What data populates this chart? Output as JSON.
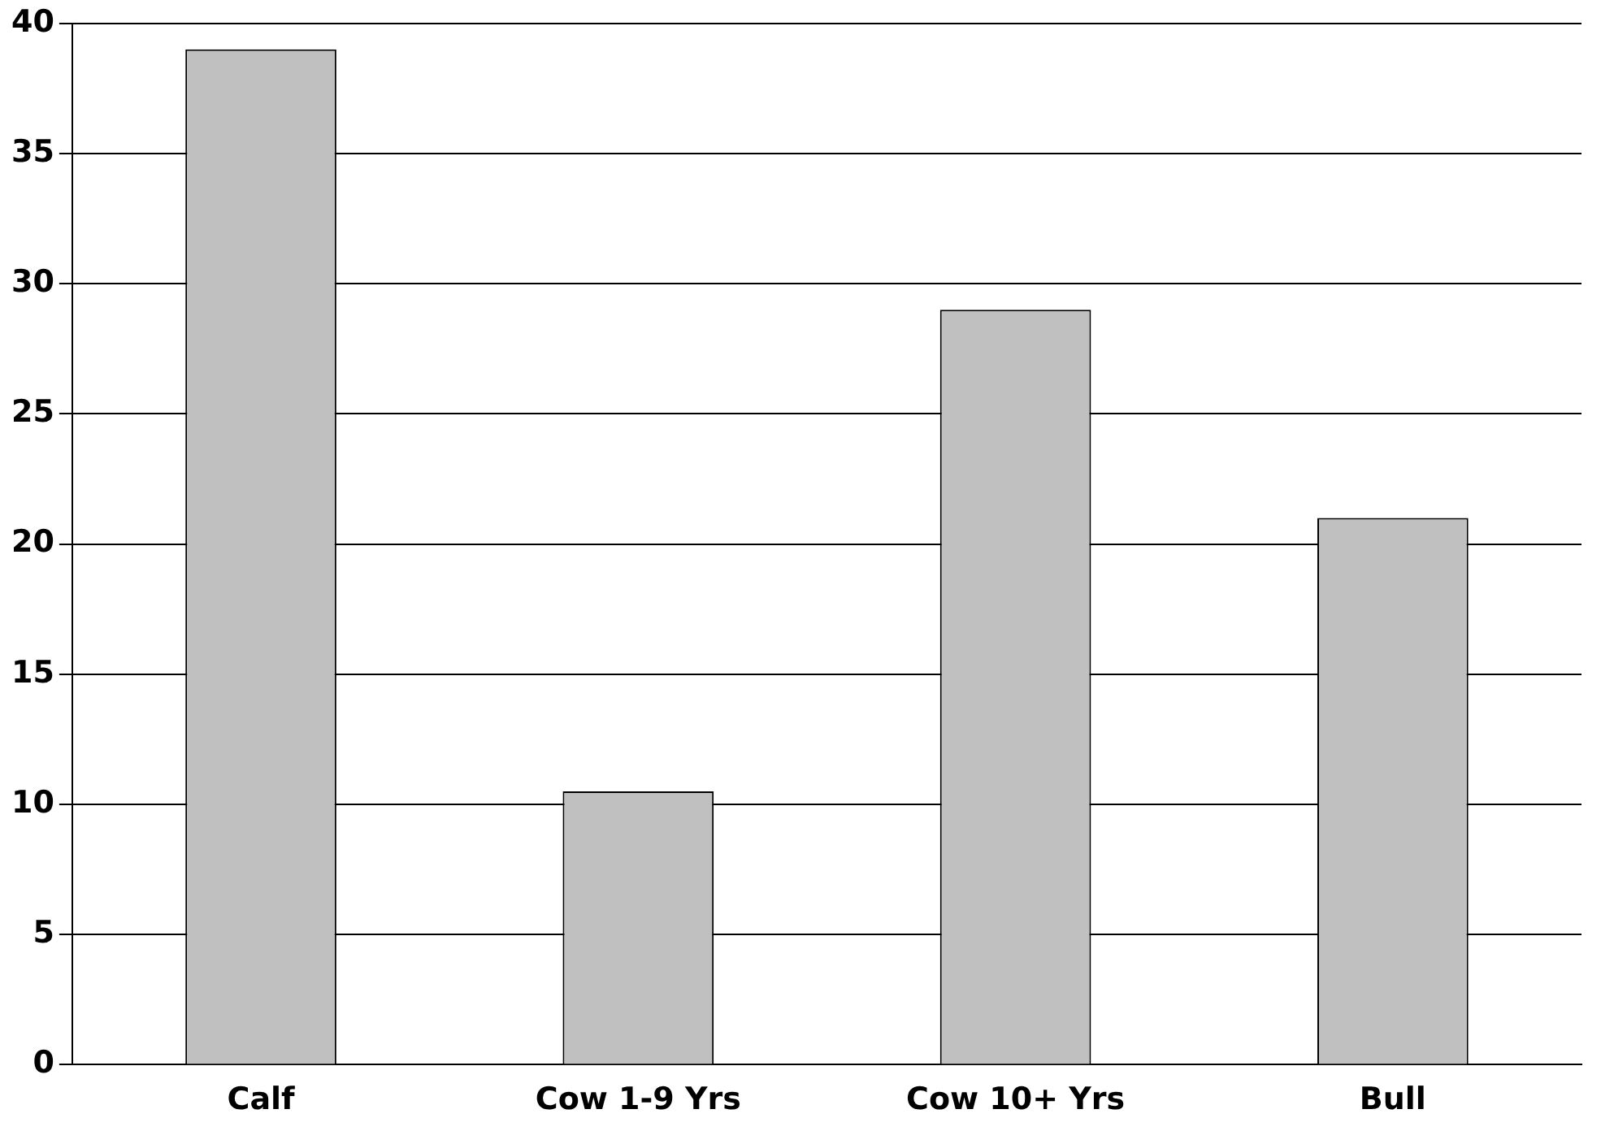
{
  "chart_data": {
    "type": "bar",
    "categories": [
      "Calf",
      "Cow 1-9 Yrs",
      "Cow 10+ Yrs",
      "Bull"
    ],
    "values": [
      39,
      10.5,
      29,
      21
    ],
    "color": "#c0c0c0",
    "ylim": [
      0,
      40
    ],
    "yticks": [
      0,
      5,
      10,
      15,
      20,
      25,
      30,
      35,
      40
    ],
    "grid": "y",
    "legend": false
  }
}
